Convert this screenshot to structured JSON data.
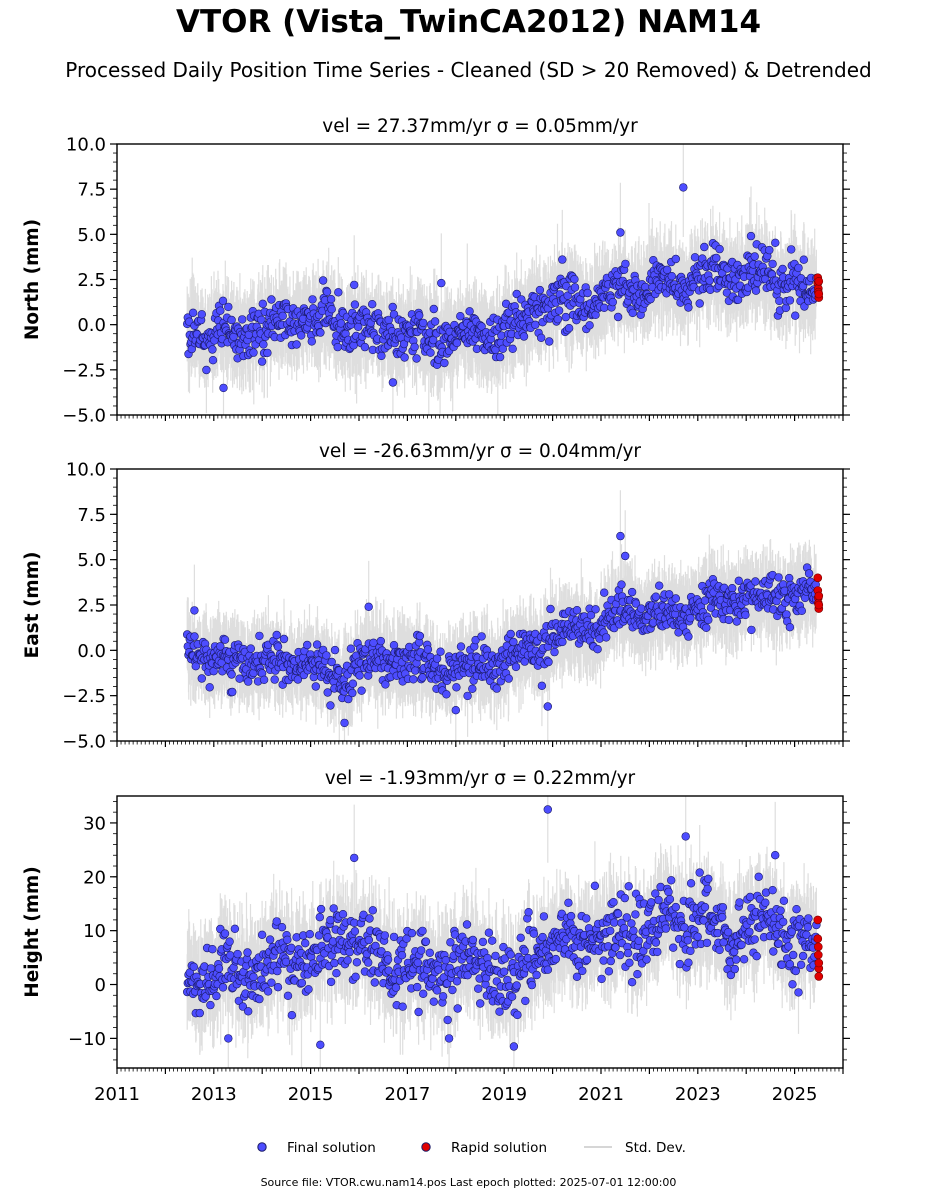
{
  "page": {
    "title": "VTOR (Vista_TwinCA2012) NAM14",
    "subtitle": "Processed Daily Position Time Series - Cleaned (SD > 20 Removed) & Detrended",
    "footer": "Source file: VTOR.cwu.nam14.pos  Last epoch plotted: 2025-07-01 12:00:00"
  },
  "colors": {
    "final": "#4d4dff",
    "rapid": "#e00000",
    "sd": "#a0a0a0",
    "marker_edge": "#1a1a66"
  },
  "legend": {
    "placement": "bottom-center",
    "items": [
      {
        "label": "Final solution",
        "marker": "circle",
        "color": "#4d4dff"
      },
      {
        "label": "Rapid solution",
        "marker": "circle",
        "color": "#e00000"
      },
      {
        "label": "Std. Dev.",
        "marker": "line",
        "color": "#c8c8c8"
      }
    ]
  },
  "chart_data": [
    {
      "type": "scatter",
      "title": "vel = 27.37mm/yr   σ = 0.05mm/yr",
      "ylabel": "North (mm)",
      "xlim": [
        2011.0,
        2026.0
      ],
      "ylim": [
        -5,
        10
      ],
      "yticks": [
        -5,
        -2.5,
        0,
        2.5,
        5,
        7.5,
        10
      ],
      "ytick_labels": [
        "−5.0",
        "−2.5",
        "0.0",
        "2.5",
        "5.0",
        "7.5",
        "10.0"
      ],
      "grid": false,
      "trend": [
        [
          2012.45,
          -0.2
        ],
        [
          2013.5,
          -0.8
        ],
        [
          2014.3,
          0.0
        ],
        [
          2015.0,
          0.5
        ],
        [
          2016.0,
          -0.3
        ],
        [
          2017.5,
          -0.6
        ],
        [
          2019.0,
          -0.6
        ],
        [
          2019.5,
          0.4
        ],
        [
          2020.0,
          1.5
        ],
        [
          2021.0,
          1.3
        ],
        [
          2021.5,
          2.0
        ],
        [
          2022.0,
          2.2
        ],
        [
          2023.0,
          2.6
        ],
        [
          2024.0,
          2.9
        ],
        [
          2025.0,
          2.2
        ],
        [
          2025.45,
          1.6
        ]
      ],
      "noise_sd": 0.85,
      "outliers": [
        [
          2022.7,
          7.6
        ],
        [
          2021.4,
          5.1
        ],
        [
          2020.2,
          3.6
        ],
        [
          2024.1,
          4.9
        ],
        [
          2013.2,
          -3.5
        ],
        [
          2016.7,
          -3.2
        ],
        [
          2017.7,
          2.3
        ],
        [
          2015.9,
          2.2
        ]
      ],
      "sd_range": [
        0.8,
        2.5
      ],
      "rapid": {
        "x": [
          2025.48,
          2025.48,
          2025.49,
          2025.49,
          2025.5,
          2025.5,
          2025.5
        ],
        "y": [
          2.6,
          2.3,
          2.0,
          1.8,
          1.5,
          2.4,
          1.7
        ]
      }
    },
    {
      "type": "scatter",
      "title": "vel = -26.63mm/yr   σ = 0.04mm/yr",
      "ylabel": "East (mm)",
      "xlim": [
        2011.0,
        2026.0
      ],
      "ylim": [
        -5,
        10
      ],
      "yticks": [
        -5,
        -2.5,
        0,
        2.5,
        5,
        7.5,
        10
      ],
      "ytick_labels": [
        "−5.0",
        "−2.5",
        "0.0",
        "2.5",
        "5.0",
        "7.5",
        "10.0"
      ],
      "grid": false,
      "trend": [
        [
          2012.45,
          0.2
        ],
        [
          2013.0,
          -0.5
        ],
        [
          2014.0,
          -0.6
        ],
        [
          2015.0,
          -0.8
        ],
        [
          2015.6,
          -1.6
        ],
        [
          2016.3,
          -0.4
        ],
        [
          2017.0,
          -0.8
        ],
        [
          2018.0,
          -1.3
        ],
        [
          2019.0,
          -0.6
        ],
        [
          2019.5,
          0.0
        ],
        [
          2020.0,
          0.9
        ],
        [
          2020.5,
          1.1
        ],
        [
          2021.0,
          1.3
        ],
        [
          2021.5,
          2.4
        ],
        [
          2022.0,
          1.8
        ],
        [
          2023.0,
          2.4
        ],
        [
          2024.0,
          2.8
        ],
        [
          2025.0,
          3.0
        ],
        [
          2025.45,
          3.0
        ]
      ],
      "noise_sd": 0.75,
      "outliers": [
        [
          2021.4,
          6.3
        ],
        [
          2019.9,
          -3.1
        ],
        [
          2016.2,
          2.4
        ],
        [
          2015.7,
          -4.0
        ],
        [
          2012.6,
          2.2
        ],
        [
          2021.5,
          5.2
        ],
        [
          2018.0,
          -3.3
        ]
      ],
      "sd_range": [
        0.8,
        2.3
      ],
      "rapid": {
        "x": [
          2025.48,
          2025.48,
          2025.49,
          2025.49,
          2025.5,
          2025.5,
          2025.5
        ],
        "y": [
          4.0,
          3.3,
          2.9,
          2.6,
          2.3,
          3.0,
          2.5
        ]
      }
    },
    {
      "type": "scatter",
      "title": "vel = -1.93mm/yr   σ = 0.22mm/yr",
      "ylabel": "Height (mm)",
      "xlim": [
        2011.0,
        2026.0
      ],
      "ylim": [
        -15.5,
        35
      ],
      "yticks": [
        -10,
        0,
        10,
        20,
        30
      ],
      "ytick_labels": [
        "−10",
        "0",
        "10",
        "20",
        "30"
      ],
      "xticks": [
        2011,
        2013,
        2015,
        2017,
        2019,
        2021,
        2023,
        2025
      ],
      "xtick_labels": [
        "2011",
        "2013",
        "2015",
        "2017",
        "2019",
        "2021",
        "2023",
        "2025"
      ],
      "grid": false,
      "trend": [
        [
          2012.45,
          2.0
        ],
        [
          2013.0,
          1.5
        ],
        [
          2014.0,
          3.5
        ],
        [
          2015.0,
          4.5
        ],
        [
          2015.8,
          9.0
        ],
        [
          2016.5,
          4.0
        ],
        [
          2017.5,
          2.0
        ],
        [
          2018.5,
          4.0
        ],
        [
          2019.2,
          0.0
        ],
        [
          2019.6,
          6.0
        ],
        [
          2020.5,
          8.0
        ],
        [
          2021.5,
          9.0
        ],
        [
          2022.5,
          12.0
        ],
        [
          2023.0,
          13.0
        ],
        [
          2023.5,
          9.0
        ],
        [
          2024.0,
          10.0
        ],
        [
          2024.6,
          12.0
        ],
        [
          2025.0,
          7.0
        ],
        [
          2025.45,
          7.0
        ]
      ],
      "noise_sd": 4.2,
      "outliers": [
        [
          2019.9,
          32.5
        ],
        [
          2022.75,
          27.5
        ],
        [
          2015.9,
          23.5
        ],
        [
          2024.6,
          24.0
        ],
        [
          2019.2,
          -11.5
        ],
        [
          2015.2,
          -11.2
        ],
        [
          2013.3,
          -10.0
        ]
      ],
      "sd_range": [
        3.0,
        9.0
      ],
      "rapid": {
        "x": [
          2025.48,
          2025.48,
          2025.49,
          2025.49,
          2025.5,
          2025.5,
          2025.5
        ],
        "y": [
          12.0,
          8.5,
          7.0,
          5.5,
          3.0,
          1.5,
          4.0
        ]
      }
    }
  ]
}
